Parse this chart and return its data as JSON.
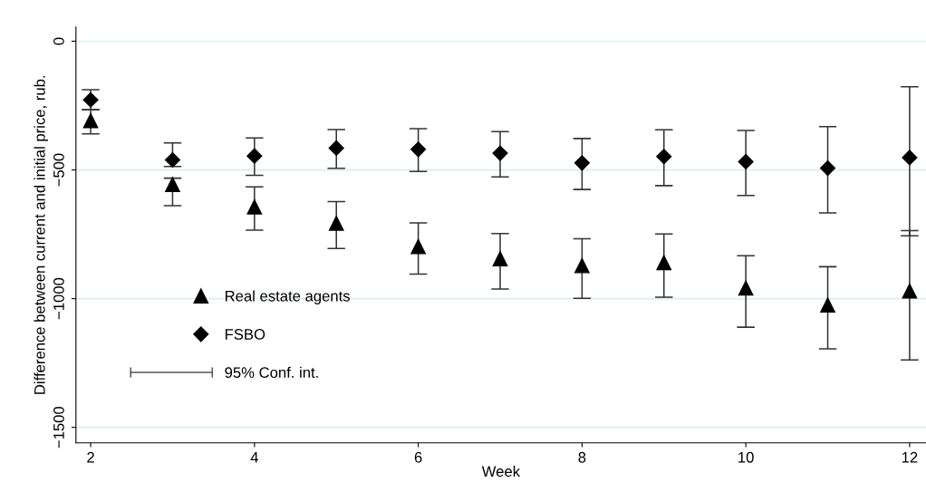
{
  "chart_data": {
    "type": "scatter",
    "xlabel": "Week",
    "ylabel": "Difference between current and initial price, rub.",
    "x": [
      2,
      3,
      4,
      5,
      6,
      7,
      8,
      9,
      10,
      11,
      12
    ],
    "series": [
      {
        "name": "Real estate agents",
        "color": "#000000",
        "marker": "triangle",
        "values": [
          -309,
          -557,
          -644,
          -707,
          -798,
          -845,
          -872,
          -860,
          -959,
          -1025,
          -970
        ],
        "errors": [
          [
            -360,
            -266
          ],
          [
            -639,
            -532
          ],
          [
            -734,
            -566
          ],
          [
            -805,
            -623
          ],
          [
            -905,
            -706
          ],
          [
            -963,
            -747
          ],
          [
            -999,
            -767
          ],
          [
            -994,
            -749
          ],
          [
            -1111,
            -833
          ],
          [
            -1195,
            -876
          ],
          [
            -1238,
            -736
          ]
        ]
      },
      {
        "name": "FSBO",
        "color": "#000000",
        "marker": "diamond",
        "values": [
          -228,
          -461,
          -446,
          -415,
          -420,
          -435,
          -473,
          -448,
          -468,
          -493,
          -452
        ],
        "errors": [
          [
            -266,
            -188
          ],
          [
            -487,
            -395
          ],
          [
            -521,
            -376
          ],
          [
            -494,
            -343
          ],
          [
            -506,
            -340
          ],
          [
            -527,
            -351
          ],
          [
            -576,
            -378
          ],
          [
            -561,
            -344
          ],
          [
            -599,
            -347
          ],
          [
            -667,
            -332
          ],
          [
            -756,
            -177
          ]
        ]
      }
    ],
    "annotations": [
      "95% Conf. int."
    ],
    "xlim": [
      1.82,
      12.2
    ],
    "xticks": [
      2,
      4,
      6,
      8,
      10,
      12
    ],
    "ylim": [
      -1560,
      55
    ],
    "yticks": [
      {
        "value": -1500,
        "label": "−1500"
      },
      {
        "value": -1000,
        "label": "−1000"
      },
      {
        "value": -500,
        "label": "−500"
      },
      0
    ],
    "grid": "y",
    "legend": "bottom left"
  }
}
